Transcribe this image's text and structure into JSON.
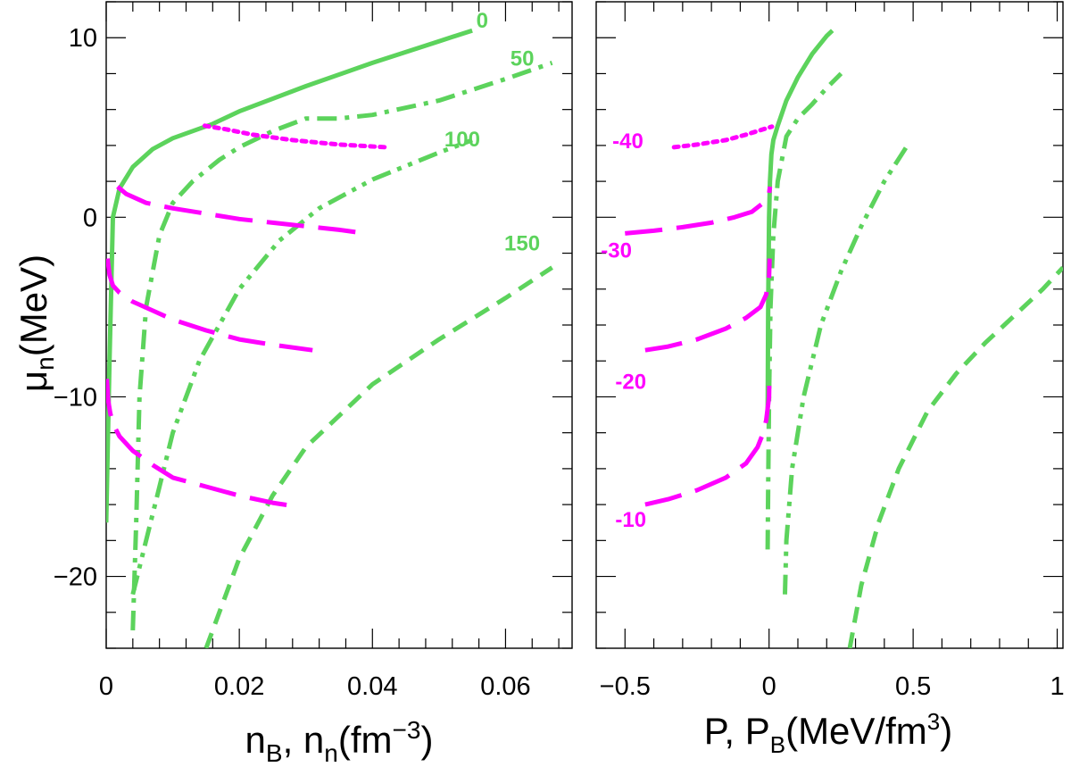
{
  "chart_data": [
    {
      "type": "line",
      "panel": "left",
      "xlabel": "n_B, n_n(fm^-3)",
      "ylabel": "μ_n(MeV)",
      "xlim": [
        0,
        0.07
      ],
      "ylim": [
        -24,
        12
      ],
      "xticks": [
        0,
        0.02,
        0.04,
        0.06
      ],
      "xtick_labels": [
        "0",
        "0.02",
        "0.04",
        "0.06"
      ],
      "yticks": [
        -20,
        -10,
        0,
        10
      ],
      "ytick_labels": [
        "−20",
        "−10",
        "0",
        "10"
      ],
      "grid": false,
      "series": [
        {
          "name": "0",
          "color": "#5cd35c",
          "style": "solid",
          "x": [
            0,
            0.0005,
            0.001,
            0.002,
            0.004,
            0.007,
            0.01,
            0.013,
            0.016,
            0.02,
            0.03,
            0.04,
            0.05,
            0.055
          ],
          "y": [
            -17,
            -8,
            0,
            1.6,
            2.8,
            3.8,
            4.4,
            4.8,
            5.2,
            5.9,
            7.3,
            8.6,
            9.8,
            10.4
          ]
        },
        {
          "name": "50",
          "color": "#5cd35c",
          "style": "dashdot",
          "x": [
            0.004,
            0.0045,
            0.005,
            0.006,
            0.008,
            0.01,
            0.013,
            0.017,
            0.02,
            0.025,
            0.03,
            0.035,
            0.04,
            0.05,
            0.06,
            0.067
          ],
          "y": [
            -23,
            -17,
            -10,
            -5,
            -1,
            0.8,
            2,
            3.2,
            3.9,
            4.8,
            5.5,
            5.5,
            5.7,
            6.5,
            7.7,
            8.6
          ]
        },
        {
          "name": "100",
          "color": "#5cd35c",
          "style": "dashdotdot",
          "x": [
            0.004,
            0.006,
            0.008,
            0.01,
            0.014,
            0.02,
            0.026,
            0.032,
            0.04,
            0.05,
            0.055
          ],
          "y": [
            -21,
            -18,
            -15,
            -12,
            -8,
            -4,
            -1.3,
            0.5,
            2.1,
            3.6,
            4.3
          ]
        },
        {
          "name": "150",
          "color": "#5cd35c",
          "style": "dashed",
          "x": [
            0.015,
            0.018,
            0.02,
            0.025,
            0.03,
            0.04,
            0.05,
            0.06,
            0.067
          ],
          "y": [
            -24,
            -21,
            -19,
            -15.5,
            -12.8,
            -9.3,
            -6.8,
            -4.5,
            -2.8
          ]
        },
        {
          "name": "-40",
          "color": "#ff00ff",
          "style": "dotted",
          "x": [
            0.0148,
            0.018,
            0.022,
            0.028,
            0.035,
            0.042
          ],
          "y": [
            5.1,
            4.9,
            4.6,
            4.3,
            4.05,
            3.9
          ]
        },
        {
          "name": "-30",
          "color": "#ff00ff",
          "style": "longdash",
          "x": [
            0.0017,
            0.003,
            0.006,
            0.01,
            0.015,
            0.02,
            0.025,
            0.03,
            0.035,
            0.039
          ],
          "y": [
            1.7,
            1.3,
            0.8,
            0.5,
            0.2,
            -0.1,
            -0.3,
            -0.5,
            -0.7,
            -0.9
          ]
        },
        {
          "name": "-20",
          "color": "#ff00ff",
          "style": "longdash",
          "x": [
            0.0002,
            0.0005,
            0.001,
            0.002,
            0.004,
            0.007,
            0.01,
            0.015,
            0.02,
            0.025,
            0.031
          ],
          "y": [
            -2.3,
            -3.2,
            -3.8,
            -4.2,
            -4.7,
            -5.2,
            -5.7,
            -6.3,
            -6.8,
            -7.1,
            -7.4
          ]
        },
        {
          "name": "-10",
          "color": "#ff00ff",
          "style": "longdash",
          "x": [
            0.0001,
            0.0003,
            0.0006,
            0.001,
            0.002,
            0.004,
            0.007,
            0.01,
            0.015,
            0.02,
            0.025,
            0.0285
          ],
          "y": [
            -9,
            -10.2,
            -10.9,
            -11.5,
            -12.2,
            -13,
            -13.8,
            -14.5,
            -15,
            -15.5,
            -15.9,
            -16.1
          ]
        }
      ],
      "labels": [
        {
          "text": "0",
          "color": "#5cd35c",
          "x": 0.0565,
          "y": 11
        },
        {
          "text": "50",
          "color": "#5cd35c",
          "x": 0.0625,
          "y": 8.9
        },
        {
          "text": "100",
          "color": "#5cd35c",
          "x": 0.0535,
          "y": 4.4
        },
        {
          "text": "150",
          "color": "#5cd35c",
          "x": 0.0625,
          "y": -1.4
        }
      ]
    },
    {
      "type": "line",
      "panel": "right",
      "xlabel": "P, P_B(MeV/fm^3)",
      "ylabel": "",
      "xlim": [
        -0.6,
        1.02
      ],
      "ylim": [
        -24,
        12
      ],
      "xticks": [
        -0.5,
        0,
        0.5,
        1
      ],
      "xtick_labels": [
        "−0.5",
        "0",
        "0.5",
        "1"
      ],
      "yticks": [
        -20,
        -10,
        0,
        10
      ],
      "grid": false,
      "series": [
        {
          "name": "0",
          "color": "#5cd35c",
          "style": "solid",
          "x": [
            -0.005,
            -0.003,
            0,
            0.003,
            0.008,
            0.015,
            0.03,
            0.06,
            0.1,
            0.15,
            0.2,
            0.22
          ],
          "y": [
            -11,
            -5,
            0,
            2,
            3.5,
            4.3,
            5.1,
            6.5,
            7.8,
            9.1,
            10.1,
            10.4
          ]
        },
        {
          "name": "50",
          "color": "#5cd35c",
          "style": "dashdot",
          "x": [
            -0.005,
            -0.003,
            0,
            0.005,
            0.015,
            0.03,
            0.06,
            0.1,
            0.15,
            0.2,
            0.25
          ],
          "y": [
            -18.5,
            -15,
            -10,
            -5,
            -1,
            2,
            4.5,
            5.5,
            6.3,
            7.2,
            8
          ]
        },
        {
          "name": "100",
          "color": "#5cd35c",
          "style": "dashdotdot",
          "x": [
            0.055,
            0.06,
            0.08,
            0.12,
            0.18,
            0.25,
            0.32,
            0.4,
            0.48
          ],
          "y": [
            -21,
            -18,
            -14,
            -10,
            -6,
            -3,
            -0.5,
            2,
            4
          ]
        },
        {
          "name": "150",
          "color": "#5cd35c",
          "style": "dashed",
          "x": [
            0.28,
            0.32,
            0.38,
            0.45,
            0.55,
            0.65,
            0.75,
            0.85,
            0.95,
            1.02
          ],
          "y": [
            -24,
            -20.5,
            -17,
            -14,
            -10.8,
            -8.7,
            -7,
            -5.5,
            -4,
            -2.8
          ]
        },
        {
          "name": "-40",
          "color": "#ff00ff",
          "style": "dotted",
          "x": [
            -0.33,
            -0.25,
            -0.15,
            -0.08,
            -0.03,
            0.01
          ],
          "y": [
            3.9,
            4.05,
            4.3,
            4.6,
            4.85,
            5.05
          ]
        },
        {
          "name": "-30",
          "color": "#ff00ff",
          "style": "longdash",
          "x": [
            -0.5,
            -0.4,
            -0.3,
            -0.2,
            -0.12,
            -0.06,
            -0.02,
            0,
            0.003
          ],
          "y": [
            -0.9,
            -0.75,
            -0.55,
            -0.3,
            0,
            0.3,
            0.8,
            1.3,
            1.7
          ]
        },
        {
          "name": "-20",
          "color": "#ff00ff",
          "style": "longdash",
          "x": [
            -0.43,
            -0.35,
            -0.25,
            -0.15,
            -0.08,
            -0.03,
            -0.01,
            0,
            0.002
          ],
          "y": [
            -7.4,
            -7.2,
            -6.8,
            -6.2,
            -5.6,
            -5,
            -4.3,
            -3.3,
            -2.3
          ]
        },
        {
          "name": "-10",
          "color": "#ff00ff",
          "style": "longdash",
          "x": [
            -0.43,
            -0.35,
            -0.25,
            -0.15,
            -0.08,
            -0.04,
            -0.02,
            -0.01,
            0,
            0.001
          ],
          "y": [
            -16,
            -15.7,
            -15.2,
            -14.5,
            -13.7,
            -12.8,
            -12,
            -11.3,
            -10,
            -9
          ]
        }
      ],
      "labels": [
        {
          "text": "-40",
          "color": "#ff00ff",
          "x": -0.49,
          "y": 4.3
        },
        {
          "text": "-30",
          "color": "#ff00ff",
          "x": -0.53,
          "y": -1.8
        },
        {
          "text": "-20",
          "color": "#ff00ff",
          "x": -0.48,
          "y": -9.1
        },
        {
          "text": "-10",
          "color": "#ff00ff",
          "x": -0.48,
          "y": -16.8
        }
      ]
    }
  ]
}
